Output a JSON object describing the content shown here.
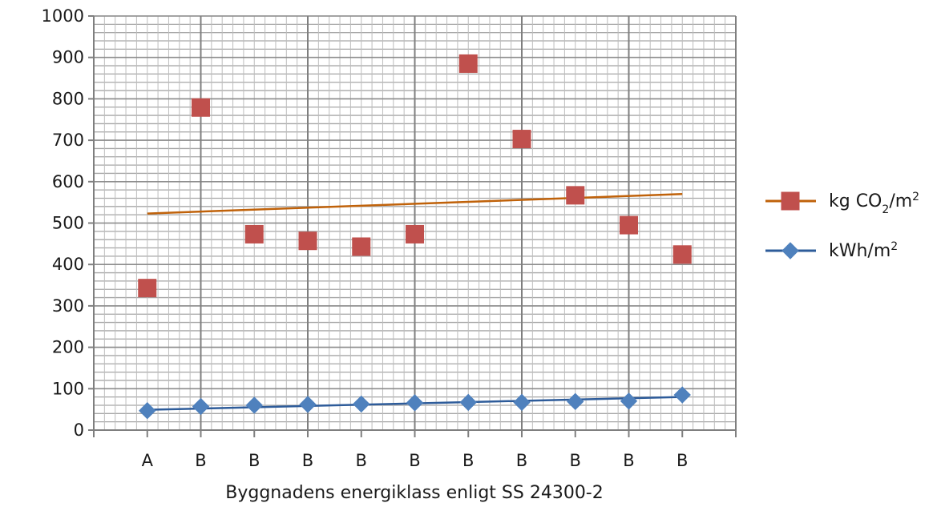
{
  "chart_data": {
    "type": "scatter",
    "xlabel": "Byggnadens energiklass enligt SS 24300-2",
    "ylabel": "",
    "categories": [
      "A",
      "B",
      "B",
      "B",
      "B",
      "B",
      "B",
      "B",
      "B",
      "B",
      "B"
    ],
    "ylim": [
      0,
      1000
    ],
    "yticks": [
      0,
      100,
      200,
      300,
      400,
      500,
      600,
      700,
      800,
      900,
      1000
    ],
    "grid": true,
    "legend_position": "right",
    "series": [
      {
        "name": "kg CO₂/m²",
        "name_parts": {
          "base": "kg CO",
          "sub": "2",
          "mid": "/m",
          "sup": "2"
        },
        "marker": "square",
        "color": "#c0504d",
        "trendline": {
          "color": "#c0620a",
          "start": 523,
          "end": 570
        },
        "values": [
          343,
          779,
          473,
          457,
          443,
          473,
          885,
          703,
          567,
          495,
          424
        ]
      },
      {
        "name": "kWh/m²",
        "name_parts": {
          "base": "kWh/m",
          "sup": "2"
        },
        "marker": "diamond",
        "color": "#4f81bd",
        "trendline": {
          "color": "#2e5c9a",
          "start": 49,
          "end": 80
        },
        "values": [
          47,
          57,
          60,
          62,
          63,
          66,
          67,
          67,
          69,
          70,
          85
        ]
      }
    ]
  }
}
